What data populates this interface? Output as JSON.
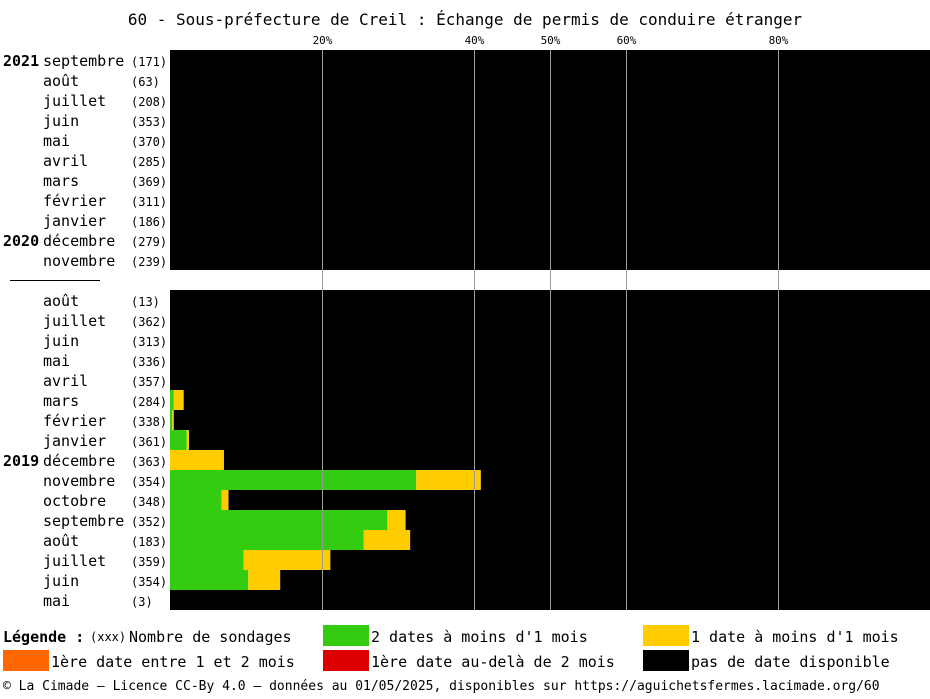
{
  "title": "60 - Sous-préfecture de Creil : Échange de permis de conduire étranger",
  "chart_data": {
    "type": "bar",
    "stacked": true,
    "orientation": "horizontal",
    "x_ticks": [
      20,
      40,
      50,
      60,
      80
    ],
    "x_tick_suffix": "%",
    "xlim": [
      0,
      100
    ],
    "grid": true,
    "legend_position": "bottom",
    "series": [
      {
        "name": "2 dates à moins d'1 mois",
        "color": "#33cc11"
      },
      {
        "name": "1 date à moins d'1 mois",
        "color": "#ffcc00"
      },
      {
        "name": "1ère date entre 1 et 2 mois",
        "color": "#ff6600"
      },
      {
        "name": "1ère date au-delà de 2 mois",
        "color": "#dd0000"
      },
      {
        "name": "pas de date disponible",
        "color": "#000000"
      }
    ],
    "groups": [
      {
        "rows": [
          {
            "year": "2021",
            "month": "septembre",
            "count": "(171)",
            "values": [
              0,
              0,
              0,
              0,
              100
            ]
          },
          {
            "year": "",
            "month": "août",
            "count": "(63)",
            "values": [
              0,
              0,
              0,
              0,
              100
            ]
          },
          {
            "year": "",
            "month": "juillet",
            "count": "(208)",
            "values": [
              0,
              0,
              0,
              0,
              100
            ]
          },
          {
            "year": "",
            "month": "juin",
            "count": "(353)",
            "values": [
              0,
              0,
              0,
              0,
              100
            ]
          },
          {
            "year": "",
            "month": "mai",
            "count": "(370)",
            "values": [
              0,
              0,
              0,
              0,
              100
            ]
          },
          {
            "year": "",
            "month": "avril",
            "count": "(285)",
            "values": [
              0,
              0,
              0,
              0,
              100
            ]
          },
          {
            "year": "",
            "month": "mars",
            "count": "(369)",
            "values": [
              0,
              0,
              0,
              0,
              100
            ]
          },
          {
            "year": "",
            "month": "février",
            "count": "(311)",
            "values": [
              0,
              0,
              0,
              0,
              100
            ]
          },
          {
            "year": "",
            "month": "janvier",
            "count": "(186)",
            "values": [
              0,
              0,
              0,
              0,
              100
            ]
          },
          {
            "year": "2020",
            "month": "décembre",
            "count": "(279)",
            "values": [
              0,
              0,
              0,
              0,
              100
            ]
          },
          {
            "year": "",
            "month": "novembre",
            "count": "(239)",
            "values": [
              0,
              0,
              0,
              0,
              100
            ]
          }
        ]
      },
      {
        "rows": [
          {
            "year": "",
            "month": "août",
            "count": "(13)",
            "values": [
              0,
              0,
              0,
              0,
              100
            ]
          },
          {
            "year": "",
            "month": "juillet",
            "count": "(362)",
            "values": [
              0,
              0,
              0,
              0,
              100
            ]
          },
          {
            "year": "",
            "month": "juin",
            "count": "(313)",
            "values": [
              0,
              0,
              0,
              0,
              100
            ]
          },
          {
            "year": "",
            "month": "mai",
            "count": "(336)",
            "values": [
              0,
              0,
              0,
              0,
              100
            ]
          },
          {
            "year": "",
            "month": "avril",
            "count": "(357)",
            "values": [
              0,
              0,
              0,
              0,
              100
            ]
          },
          {
            "year": "",
            "month": "mars",
            "count": "(284)",
            "values": [
              0.5,
              1.3,
              0,
              0,
              98.2
            ]
          },
          {
            "year": "",
            "month": "février",
            "count": "(338)",
            "values": [
              0.3,
              0.2,
              0,
              0,
              99.5
            ]
          },
          {
            "year": "",
            "month": "janvier",
            "count": "(361)",
            "values": [
              2.2,
              0.3,
              0,
              0,
              97.5
            ]
          },
          {
            "year": "2019",
            "month": "décembre",
            "count": "(363)",
            "values": [
              0,
              7.1,
              0,
              0,
              92.9
            ]
          },
          {
            "year": "",
            "month": "novembre",
            "count": "(354)",
            "values": [
              32.4,
              8.5,
              0,
              0,
              59.1
            ]
          },
          {
            "year": "",
            "month": "octobre",
            "count": "(348)",
            "values": [
              6.8,
              0.9,
              0,
              0,
              92.3
            ]
          },
          {
            "year": "",
            "month": "septembre",
            "count": "(352)",
            "values": [
              28.6,
              2.4,
              0,
              0,
              69.0
            ]
          },
          {
            "year": "",
            "month": "août",
            "count": "(183)",
            "values": [
              25.5,
              6.1,
              0,
              0,
              68.4
            ]
          },
          {
            "year": "",
            "month": "juillet",
            "count": "(359)",
            "values": [
              9.7,
              11.4,
              0,
              0,
              78.9
            ]
          },
          {
            "year": "",
            "month": "juin",
            "count": "(354)",
            "values": [
              10.3,
              4.2,
              0,
              0,
              85.5
            ]
          },
          {
            "year": "",
            "month": "mai",
            "count": "(3)",
            "values": [
              0,
              0,
              0,
              0,
              100
            ]
          }
        ]
      }
    ]
  },
  "legend": {
    "heading": "Légende :",
    "count_marker": "(xxx)",
    "count_label": "Nombre de sondages"
  },
  "footer": "© La Cimade — Licence CC-By 4.0 — données au 01/05/2025, disponibles sur https://aguichetsfermes.lacimade.org/60"
}
